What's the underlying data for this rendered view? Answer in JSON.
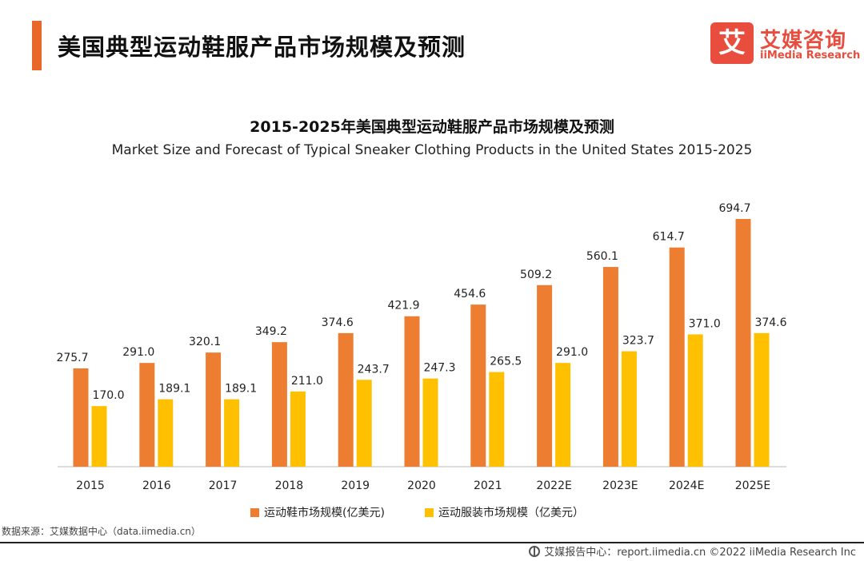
{
  "header": {
    "title": "美国典型运动鞋服产品市场规模及预测",
    "logo_mark": "艾",
    "logo_cn": "艾媒咨询",
    "logo_en": "iiMedia Research"
  },
  "chart_data": {
    "type": "bar",
    "title": "2015-2025年美国典型运动鞋服产品市场规模及预测",
    "subtitle": "Market Size and Forecast of Typical Sneaker Clothing Products in the United States 2015-2025",
    "categories": [
      "2015",
      "2016",
      "2017",
      "2018",
      "2019",
      "2020",
      "2021",
      "2022E",
      "2023E",
      "2024E",
      "2025E"
    ],
    "series": [
      {
        "name": "运动鞋市场规模(亿美元)",
        "color": "#ed7d31",
        "values": [
          275.7,
          291.0,
          320.1,
          349.2,
          374.6,
          421.9,
          454.6,
          509.2,
          560.1,
          614.7,
          694.7
        ],
        "labels": [
          "275.7",
          "291.0",
          "320.1",
          "349.2",
          "374.6",
          "421.9",
          "454.6",
          "509.2",
          "560.1",
          "614.7",
          "694.7"
        ]
      },
      {
        "name": "运动服装市场规模（亿美元）",
        "color": "#ffc000",
        "values": [
          170.0,
          189.1,
          189.1,
          211.0,
          243.7,
          247.3,
          265.5,
          291.0,
          323.7,
          371.0,
          374.6
        ],
        "labels": [
          "170.0",
          "189.1",
          "189.1",
          "211.0",
          "243.7",
          "247.3",
          "265.5",
          "291.0",
          "323.7",
          "371.0",
          "374.6"
        ]
      }
    ],
    "xlabel": "",
    "ylabel": "",
    "ylim": [
      0,
      700
    ],
    "grid": false,
    "legend": "bottom-center"
  },
  "footer": {
    "source": "数据来源：艾媒数据中心（data.iimedia.cn）",
    "report": "艾媒报告中心：report.iimedia.cn   ©2022  iiMedia Research  Inc"
  }
}
